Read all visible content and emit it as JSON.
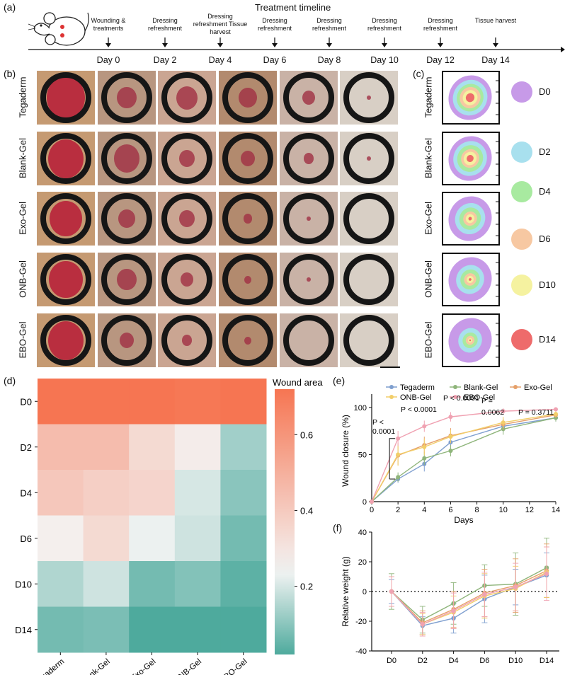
{
  "panels": {
    "a": "(a)",
    "b": "(b)",
    "c": "(c)",
    "d": "(d)",
    "e": "(e)",
    "f": "(f)"
  },
  "timeline": {
    "title": "Treatment timeline",
    "events": [
      {
        "top": "Wounding & treatments",
        "day": "Day 0"
      },
      {
        "top": "Dressing refreshment",
        "day": "Day 2"
      },
      {
        "top": "Dressing refreshment Tissue harvest",
        "day": "Day 4"
      },
      {
        "top": "Dressing refreshment",
        "day": "Day 6"
      },
      {
        "top": "Dressing refreshment",
        "day": "Day 8"
      },
      {
        "top": "Dressing refreshment",
        "day": "Day 10"
      },
      {
        "top": "Dressing refreshment",
        "day": "Day 12"
      },
      {
        "top": "Tissue harvest",
        "day": "Day 14"
      }
    ]
  },
  "groups": [
    "Tegaderm",
    "Blank-Gel",
    "Exo-Gel",
    "ONB-Gel",
    "EBO-Gel"
  ],
  "wound_map_legend": [
    {
      "label": "D0",
      "color": "#c79ae8"
    },
    {
      "label": "D2",
      "color": "#a8e0ee"
    },
    {
      "label": "D4",
      "color": "#a8eaa0"
    },
    {
      "label": "D6",
      "color": "#f7c8a2"
    },
    {
      "label": "D10",
      "color": "#f5f2a0"
    },
    {
      "label": "D14",
      "color": "#ee6b6b"
    }
  ],
  "chart_data": [
    {
      "type": "heatmap",
      "rows": [
        "D0",
        "D2",
        "D4",
        "D6",
        "D10",
        "D14"
      ],
      "columns": [
        "Tegaderm",
        "Blank-Gel",
        "Exo-Gel",
        "ONB-Gel",
        "EBO-Gel"
      ],
      "values": [
        [
          0.72,
          0.72,
          0.72,
          0.71,
          0.72
        ],
        [
          0.45,
          0.45,
          0.34,
          0.27,
          0.13
        ],
        [
          0.41,
          0.38,
          0.36,
          0.2,
          0.1
        ],
        [
          0.26,
          0.34,
          0.23,
          0.19,
          0.07
        ],
        [
          0.15,
          0.19,
          0.07,
          0.09,
          0.04
        ],
        [
          0.07,
          0.08,
          0.02,
          0.02,
          0.02
        ]
      ],
      "colorbar": {
        "label": "Wound area",
        "ticks": [
          0.2,
          0.4,
          0.6
        ],
        "range": [
          0.02,
          0.72
        ]
      }
    },
    {
      "type": "line",
      "ylabel": "Wound closure (%)",
      "xlabel": "Days",
      "x": [
        0,
        2,
        4,
        6,
        10,
        14
      ],
      "xticks": [
        0,
        2,
        4,
        6,
        8,
        10,
        12,
        14
      ],
      "yticks": [
        0,
        50,
        100
      ],
      "xlim": [
        0,
        14
      ],
      "ylim": [
        0,
        100
      ],
      "series": [
        {
          "name": "Tegaderm",
          "color": "#7f9fcf",
          "values": [
            0,
            24,
            40,
            63,
            80,
            89
          ],
          "err": [
            0,
            4,
            8,
            7,
            6,
            4
          ]
        },
        {
          "name": "Blank-Gel",
          "color": "#8fb57b",
          "values": [
            0,
            26,
            46,
            54,
            77,
            89
          ],
          "err": [
            0,
            5,
            7,
            6,
            6,
            4
          ]
        },
        {
          "name": "Exo-Gel",
          "color": "#e5a06a",
          "values": [
            0,
            49,
            60,
            70,
            82,
            92
          ],
          "err": [
            0,
            10,
            9,
            8,
            6,
            3
          ]
        },
        {
          "name": "ONB-Gel",
          "color": "#f2ce6a",
          "values": [
            0,
            50,
            58,
            69,
            84,
            93
          ],
          "err": [
            0,
            12,
            9,
            7,
            6,
            3
          ]
        },
        {
          "name": "EBO-Gel",
          "color": "#f0a2b2",
          "values": [
            0,
            67,
            80,
            90,
            96,
            98
          ],
          "err": [
            0,
            8,
            6,
            5,
            3,
            2
          ]
        }
      ],
      "annotations": [
        {
          "text1": "P <",
          "text2": "0.0001",
          "x": 2
        },
        {
          "text1": "P < 0.0001",
          "x": 4
        },
        {
          "text1": "P < 0.0001",
          "x": 6
        },
        {
          "text1": "P =",
          "text2": "0.0062",
          "x": 10
        },
        {
          "text1": "P = 0.3711",
          "x": 14
        }
      ]
    },
    {
      "type": "line",
      "ylabel": "Relative weight (g)",
      "categories": [
        "D0",
        "D2",
        "D4",
        "D6",
        "D10",
        "D14"
      ],
      "yticks": [
        -40,
        -20,
        0,
        20,
        40
      ],
      "ylim": [
        -40,
        40
      ],
      "series": [
        {
          "name": "Tegaderm",
          "color": "#7f9fcf",
          "values": [
            0,
            -23,
            -18,
            -5,
            3,
            11
          ],
          "err": [
            8,
            6,
            10,
            16,
            12,
            15
          ]
        },
        {
          "name": "Blank-Gel",
          "color": "#8fb57b",
          "values": [
            0,
            -19,
            -8,
            4,
            5,
            16
          ],
          "err": [
            12,
            9,
            14,
            14,
            21,
            20
          ]
        },
        {
          "name": "Exo-Gel",
          "color": "#e5a06a",
          "values": [
            0,
            -21,
            -12,
            -1,
            4,
            14
          ],
          "err": [
            10,
            8,
            12,
            16,
            18,
            18
          ]
        },
        {
          "name": "ONB-Gel",
          "color": "#f2ce6a",
          "values": [
            0,
            -22,
            -14,
            -3,
            2,
            13
          ],
          "err": [
            10,
            7,
            11,
            15,
            15,
            17
          ]
        },
        {
          "name": "EBO-Gel",
          "color": "#f0a2b2",
          "values": [
            0,
            -22,
            -13,
            -2,
            3,
            12
          ],
          "err": [
            10,
            8,
            12,
            15,
            16,
            18
          ]
        }
      ]
    }
  ]
}
